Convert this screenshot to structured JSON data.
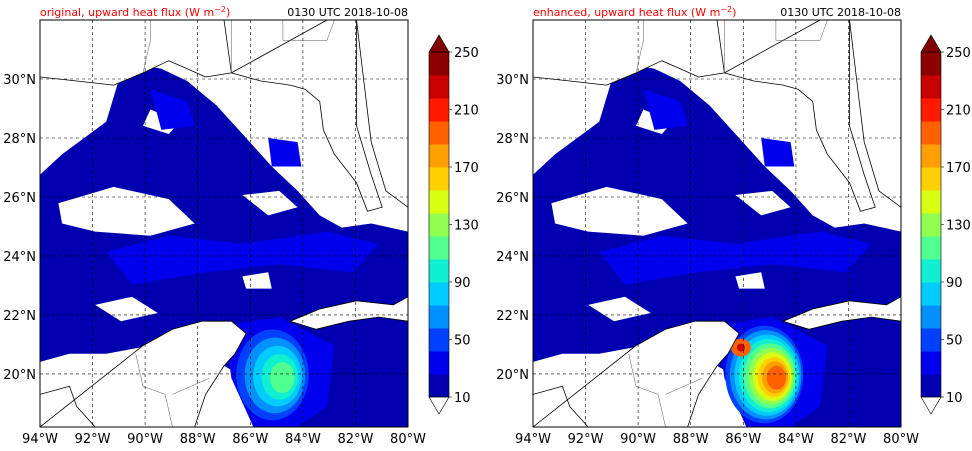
{
  "panels": [
    {
      "id": "original",
      "title": "original, upward heat flux (W m",
      "title_exp": "−2",
      "title_close": ")",
      "time": "0130 UTC 2018-10-08",
      "lon_ticks": [
        "94°W",
        "92°W",
        "90°W",
        "88°W",
        "86°W",
        "84°W",
        "82°W",
        "80°W"
      ],
      "lat_ticks": [
        "30°N",
        "28°N",
        "26°N",
        "24°N",
        "22°N",
        "20°N"
      ],
      "peak_level": 6
    },
    {
      "id": "enhanced",
      "title": "enhanced, upward heat flux (W m",
      "title_exp": "−2",
      "title_close": ")",
      "time": "0130 UTC 2018-10-08",
      "lon_ticks": [
        "94°W",
        "92°W",
        "90°W",
        "88°W",
        "86°W",
        "84°W",
        "82°W",
        "80°W"
      ],
      "lat_ticks": [
        "30°N",
        "28°N",
        "26°N",
        "24°N",
        "22°N",
        "20°N"
      ],
      "peak_level": 11
    }
  ],
  "colorbar": {
    "labels": [
      "10",
      "50",
      "90",
      "130",
      "170",
      "210",
      "250"
    ],
    "colors": [
      "#0000b0",
      "#0000ee",
      "#0040ff",
      "#0090ff",
      "#00ccff",
      "#10f0d0",
      "#50ff90",
      "#90ff50",
      "#d8ff10",
      "#ffd000",
      "#ffa000",
      "#ff6000",
      "#ff1a00",
      "#c80000",
      "#8c0000"
    ],
    "under_color": "#ffffff",
    "over_color": "#800000"
  },
  "map": {
    "lon_range": [
      -94,
      -80
    ],
    "lat_range": [
      18.2,
      32
    ]
  }
}
